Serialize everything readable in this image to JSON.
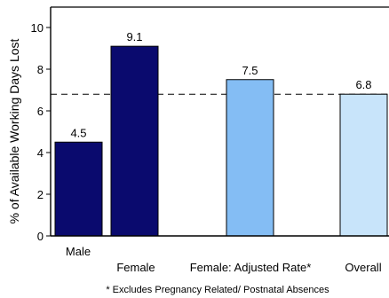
{
  "chart_data": {
    "type": "bar",
    "title": "",
    "xlabel": "",
    "ylabel": "% of Available Working Days Lost",
    "ylim": [
      0,
      11
    ],
    "yticks": [
      0,
      2,
      4,
      6,
      8,
      10
    ],
    "categories": [
      "Male",
      "Female",
      "Female: Adjusted Rate*",
      "Overall"
    ],
    "values": [
      4.5,
      9.1,
      7.5,
      6.8
    ],
    "value_labels": [
      "4.5",
      "9.1",
      "7.5",
      "6.8"
    ],
    "bar_colors": [
      "#0a0a6e",
      "#0a0a6e",
      "#84bdf4",
      "#c8e4fa"
    ],
    "reference_line": {
      "value": 6.8,
      "style": "dashed"
    },
    "footnote": "* Excludes Pregnancy Related/ Postnatal Absences",
    "grid": false,
    "legend": "none"
  },
  "colors": {
    "axis": "#000000",
    "reference_line": "#000000"
  }
}
